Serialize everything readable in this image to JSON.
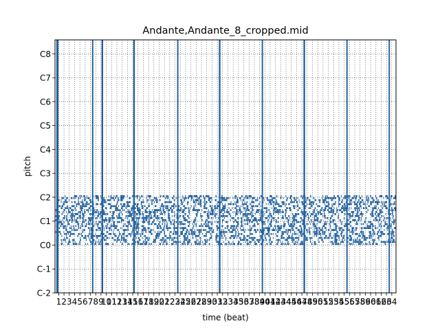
{
  "chart_data": {
    "type": "heatmap",
    "title": "Andante,Andante_8_cropped.mid",
    "xlabel": "time (beat)",
    "ylabel": "pitch",
    "xlim": [
      0.3,
      64.8
    ],
    "ylim": [
      0,
      127
    ],
    "grid": true,
    "x_ticks": [
      1,
      2,
      3,
      4,
      5,
      6,
      7,
      8,
      9,
      10,
      11,
      12,
      13,
      14,
      15,
      16,
      17,
      18,
      19,
      20,
      21,
      22,
      23,
      24,
      25,
      26,
      27,
      28,
      29,
      30,
      31,
      32,
      33,
      34,
      35,
      36,
      37,
      38,
      39,
      40,
      41,
      42,
      43,
      44,
      45,
      46,
      47,
      48,
      49,
      50,
      51,
      52,
      53,
      54,
      55,
      56,
      57,
      58,
      59,
      60,
      61,
      62,
      63,
      64
    ],
    "y_ticks": [
      {
        "value": 0,
        "label": "C-2"
      },
      {
        "value": 12,
        "label": "C-1"
      },
      {
        "value": 24,
        "label": "C0"
      },
      {
        "value": 36,
        "label": "C1"
      },
      {
        "value": 48,
        "label": "C2"
      },
      {
        "value": 60,
        "label": "C3"
      },
      {
        "value": 72,
        "label": "C4"
      },
      {
        "value": 84,
        "label": "C5"
      },
      {
        "value": 96,
        "label": "C6"
      },
      {
        "value": 108,
        "label": "C7"
      },
      {
        "value": 120,
        "label": "C8"
      }
    ],
    "full_range_columns": [
      0.55,
      0.95,
      7.3,
      7.55,
      9.1,
      9.4,
      15.1,
      15.4,
      23.4,
      23.65,
      31.3,
      31.6,
      39.4,
      39.65,
      47.3,
      47.6,
      55.4,
      55.65,
      63.4,
      63.65
    ],
    "note_band": {
      "low": 24,
      "high": 48
    },
    "color": "#1f5f9e"
  }
}
